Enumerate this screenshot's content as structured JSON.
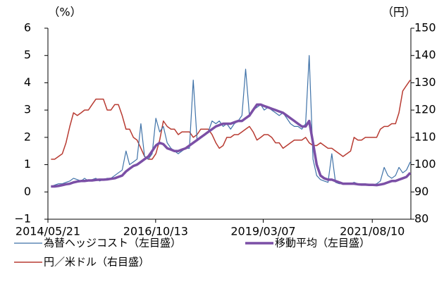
{
  "chart_data": {
    "type": "line",
    "y_unit": "（%）",
    "y2_unit": "（円）",
    "x": [
      "2014/06/15",
      "2014/07/15",
      "2014/08/15",
      "2014/09/15",
      "2014/10/15",
      "2014/11/15",
      "2014/12/15",
      "2015/01/15",
      "2015/02/15",
      "2015/03/15",
      "2015/04/15",
      "2015/05/15",
      "2015/06/15",
      "2015/07/15",
      "2015/08/15",
      "2015/09/15",
      "2015/10/15",
      "2015/11/15",
      "2015/12/15",
      "2016/01/15",
      "2016/02/15",
      "2016/03/15",
      "2016/04/15",
      "2016/05/15",
      "2016/06/15",
      "2016/07/15",
      "2016/08/15",
      "2016/09/15",
      "2016/10/15",
      "2016/11/15",
      "2016/12/15",
      "2017/01/15",
      "2017/02/15",
      "2017/03/15",
      "2017/04/15",
      "2017/05/15",
      "2017/06/15",
      "2017/07/15",
      "2017/08/15",
      "2017/09/15",
      "2017/10/15",
      "2017/11/15",
      "2017/12/15",
      "2018/01/15",
      "2018/02/15",
      "2018/03/15",
      "2018/04/15",
      "2018/05/15",
      "2018/06/15",
      "2018/07/15",
      "2018/08/15",
      "2018/09/15",
      "2018/10/15",
      "2018/11/15",
      "2018/12/15",
      "2019/01/15",
      "2019/02/15",
      "2019/03/15",
      "2019/04/15",
      "2019/05/15",
      "2019/06/15",
      "2019/07/15",
      "2019/08/15",
      "2019/09/15",
      "2019/10/15",
      "2019/11/15",
      "2019/12/15",
      "2020/01/15",
      "2020/02/15",
      "2020/03/15",
      "2020/04/15",
      "2020/05/15",
      "2020/06/15",
      "2020/07/15",
      "2020/08/15",
      "2020/09/15",
      "2020/10/15",
      "2020/11/15",
      "2020/12/15",
      "2021/01/15",
      "2021/02/15",
      "2021/03/15",
      "2021/04/15",
      "2021/05/15",
      "2021/06/15",
      "2021/07/15",
      "2021/08/15",
      "2021/09/15",
      "2021/10/15",
      "2021/11/15",
      "2021/12/15",
      "2022/01/15",
      "2022/02/15",
      "2022/03/15",
      "2022/04/15",
      "2022/05/15",
      "2022/06/15"
    ],
    "xlim": [
      "2014/05/21",
      "2022/06/20"
    ],
    "xticks": [
      "2014/05/21",
      "2016/10/13",
      "2019/03/07",
      "2021/08/10"
    ],
    "ylim": [
      -1,
      6
    ],
    "yticks": [
      {
        "value": -1,
        "label": "−1"
      },
      0,
      1,
      2,
      3,
      4,
      5,
      6
    ],
    "y2lim": [
      80,
      150
    ],
    "y2ticks": [
      80,
      90,
      100,
      110,
      120,
      130,
      140,
      150
    ],
    "series": [
      {
        "name": "為替ヘッジコスト（左目盛）",
        "color": "#3f72a8",
        "width": 1.2,
        "values": [
          0.2,
          0.25,
          0.3,
          0.3,
          0.35,
          0.4,
          0.5,
          0.45,
          0.4,
          0.5,
          0.4,
          0.45,
          0.5,
          0.4,
          0.45,
          0.5,
          0.5,
          0.6,
          0.7,
          0.8,
          1.5,
          1.0,
          1.1,
          1.2,
          2.5,
          1.3,
          1.2,
          1.4,
          2.7,
          2.2,
          2.4,
          1.8,
          1.6,
          1.5,
          1.4,
          1.5,
          1.6,
          1.6,
          4.1,
          1.9,
          2.0,
          2.1,
          2.2,
          2.6,
          2.5,
          2.6,
          2.4,
          2.5,
          2.3,
          2.5,
          2.6,
          2.8,
          4.5,
          2.8,
          3.0,
          3.1,
          3.2,
          3.0,
          3.1,
          3.0,
          2.9,
          2.8,
          2.9,
          2.7,
          2.5,
          2.4,
          2.4,
          2.3,
          2.5,
          5.0,
          1.2,
          0.6,
          0.45,
          0.4,
          0.35,
          1.4,
          0.35,
          0.3,
          0.3,
          0.3,
          0.3,
          0.35,
          0.3,
          0.3,
          0.3,
          0.25,
          0.25,
          0.3,
          0.4,
          0.9,
          0.6,
          0.5,
          0.6,
          0.9,
          0.7,
          0.8,
          1.1
        ]
      },
      {
        "name": "移動平均（左目盛）",
        "color": "#7b4fa6",
        "width": 3.5,
        "values": [
          0.2,
          0.2,
          0.22,
          0.25,
          0.28,
          0.3,
          0.35,
          0.38,
          0.4,
          0.4,
          0.42,
          0.42,
          0.44,
          0.45,
          0.45,
          0.46,
          0.48,
          0.5,
          0.55,
          0.6,
          0.75,
          0.85,
          0.95,
          1.0,
          1.1,
          1.2,
          1.3,
          1.5,
          1.7,
          1.8,
          1.75,
          1.6,
          1.55,
          1.5,
          1.5,
          1.55,
          1.6,
          1.7,
          1.8,
          1.9,
          2.0,
          2.1,
          2.2,
          2.3,
          2.4,
          2.45,
          2.5,
          2.5,
          2.5,
          2.55,
          2.6,
          2.6,
          2.7,
          2.8,
          3.0,
          3.2,
          3.2,
          3.15,
          3.1,
          3.05,
          3.0,
          2.95,
          2.9,
          2.8,
          2.7,
          2.6,
          2.5,
          2.4,
          2.4,
          2.6,
          1.8,
          1.0,
          0.6,
          0.5,
          0.45,
          0.45,
          0.4,
          0.35,
          0.3,
          0.3,
          0.3,
          0.3,
          0.28,
          0.27,
          0.27,
          0.26,
          0.26,
          0.25,
          0.27,
          0.3,
          0.35,
          0.4,
          0.4,
          0.45,
          0.5,
          0.55,
          0.7
        ]
      },
      {
        "name": "円／米ドル（右目盛）",
        "color": "#b83b32",
        "width": 1.5,
        "axis": "y2",
        "values": [
          102,
          102,
          103,
          104,
          108,
          114,
          119,
          118,
          119,
          120,
          120,
          122,
          124,
          124,
          124,
          120,
          120,
          122,
          122,
          118,
          113,
          113,
          110,
          109,
          106,
          103,
          102,
          102,
          104,
          109,
          116,
          114,
          113,
          113,
          111,
          112,
          112,
          112,
          110,
          111,
          113,
          113,
          113,
          111,
          108,
          106,
          107,
          110,
          110,
          111,
          111,
          112,
          113,
          114,
          112,
          109,
          110,
          111,
          111,
          110,
          108,
          108,
          106,
          107,
          108,
          109,
          109,
          109,
          110,
          108,
          107,
          107,
          108,
          107,
          106,
          106,
          105,
          104,
          103,
          104,
          105,
          110,
          109,
          109,
          110,
          110,
          110,
          110,
          113,
          114,
          114,
          115,
          115,
          119,
          127,
          129,
          131
        ]
      }
    ]
  }
}
